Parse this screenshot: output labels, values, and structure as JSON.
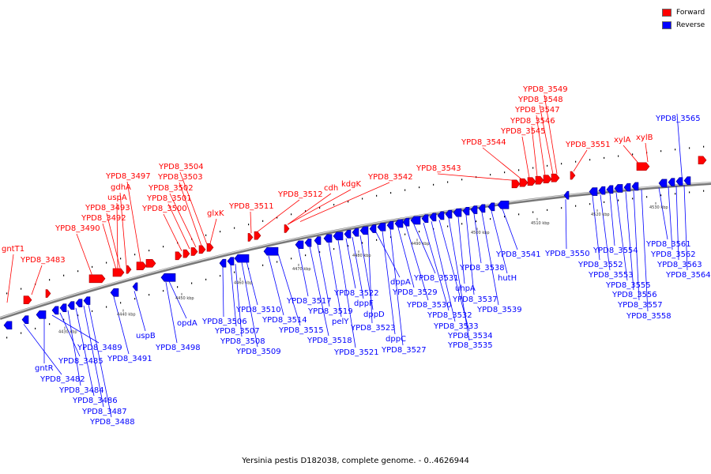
{
  "legend": {
    "forward_label": "Forward",
    "reverse_label": "Reverse",
    "forward_color": "#ff0000",
    "reverse_color": "#0000ff"
  },
  "caption": "Yersinia pestis D182038, complete genome. - 0..4626944",
  "scale_labels": [
    "4430 kbp",
    "4440 kbp",
    "4450 kbp",
    "4460 kbp",
    "4470 kbp",
    "4480 kbp",
    "4490 kbp",
    "4500 kbp",
    "4510 kbp",
    "4520 kbp",
    "4530 kbp"
  ],
  "forward_labels": [
    "gntT1",
    "YPD8_3483",
    "YPD8_3490",
    "YPD8_3492",
    "YPD8_3493",
    "uspA",
    "gdhA",
    "YPD8_3497",
    "YPD8_3500",
    "YPD8_3501",
    "YPD8_3502",
    "YPD8_3503",
    "YPD8_3504",
    "glxK",
    "YPD8_3511",
    "YPD8_3512",
    "cdh",
    "kdgK",
    "YPD8_3542",
    "YPD8_3543",
    "YPD8_3544",
    "YPD8_3545",
    "YPD8_3546",
    "YPD8_3547",
    "YPD8_3548",
    "YPD8_3549",
    "YPD8_3551",
    "xylA",
    "xylB"
  ],
  "reverse_labels": [
    "gntR",
    "YPD8_3482",
    "YPD8_3485",
    "YPD8_3484",
    "YPD8_3486",
    "YPD8_3487",
    "YPD8_3488",
    "YPD8_3489",
    "YPD8_3491",
    "uspB",
    "YPD8_3498",
    "opdA",
    "YPD8_3506",
    "YPD8_3507",
    "YPD8_3508",
    "YPD8_3509",
    "YPD8_3510",
    "YPD8_3514",
    "YPD8_3515",
    "YPD8_3517",
    "YPD8_3518",
    "YPD8_3519",
    "pelY",
    "YPD8_3521",
    "YPD8_3522",
    "dppF",
    "dppD",
    "YPD8_3523",
    "dppA",
    "dppC",
    "YPD8_3527",
    "YPD8_3529",
    "YPD8_3530",
    "YPD8_3531",
    "YPD8_3532",
    "YPD8_3533",
    "YPD8_3534",
    "YPD8_3535",
    "uhpA",
    "YPD8_3537",
    "YPD8_3538",
    "YPD8_3539",
    "hutH",
    "YPD8_3541",
    "YPD8_3550",
    "YPD8_3552",
    "YPD8_3553",
    "YPD8_3554",
    "YPD8_3555",
    "YPD8_3556",
    "YPD8_3557",
    "YPD8_3558",
    "YPD8_3561",
    "YPD8_3562",
    "YPD8_3563",
    "YPD8_3564",
    "YPD8_3565"
  ]
}
